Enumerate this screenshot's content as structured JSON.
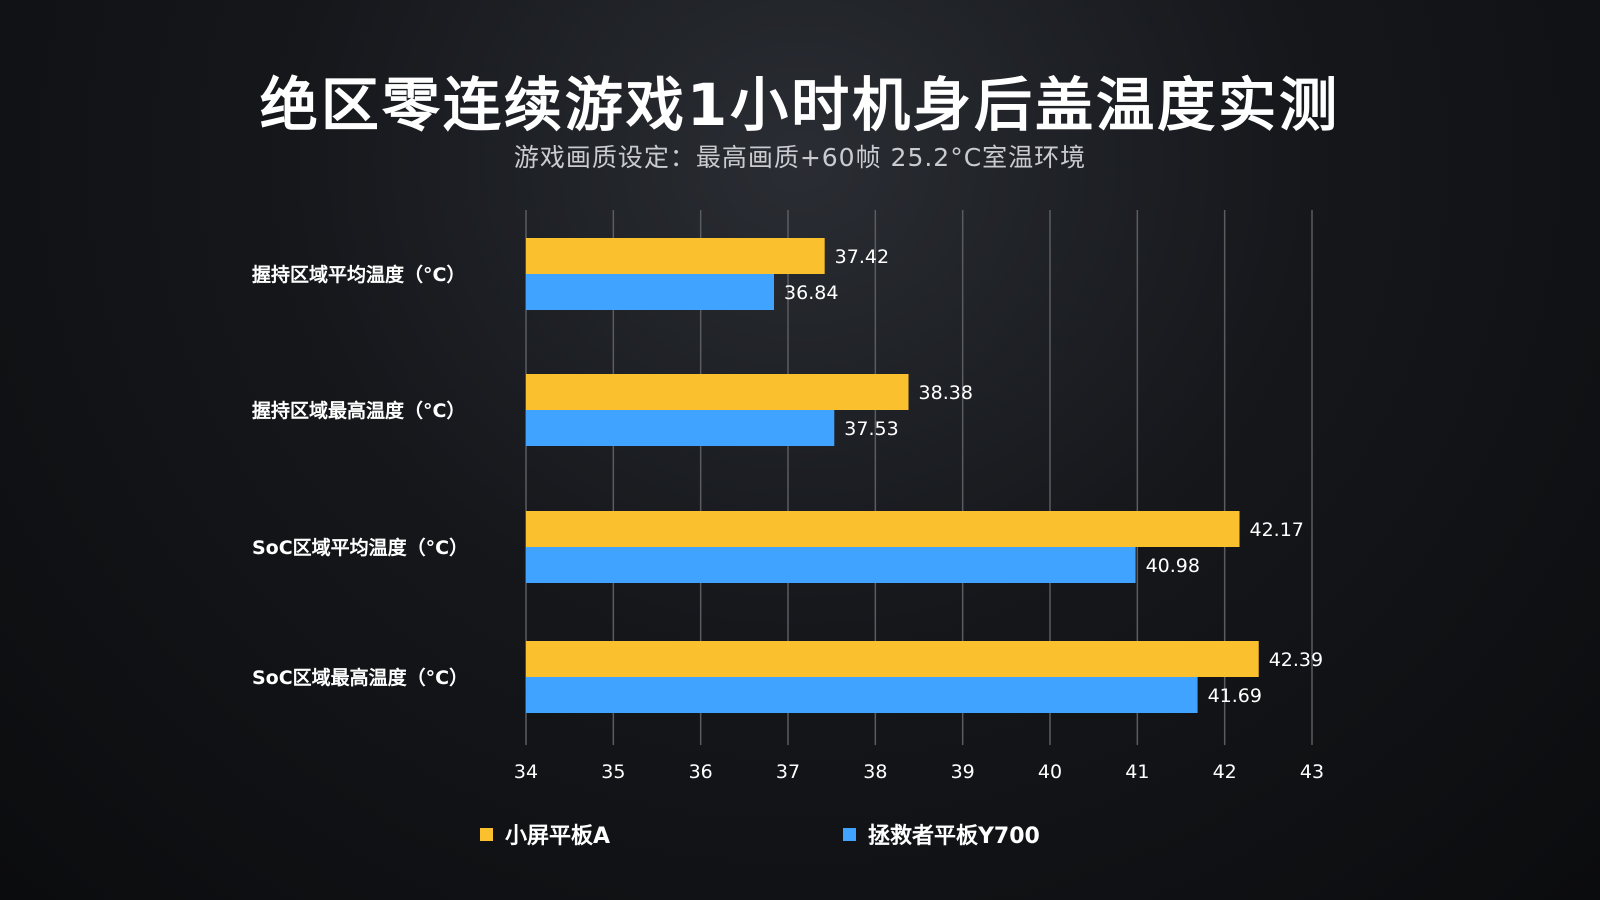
{
  "title": "绝区零连续游戏1小时机身后盖温度实测",
  "subtitle": "游戏画质设定：最高画质+60帧  25.2°C室温环境",
  "colors": {
    "series_a": "#fbc02d",
    "series_b": "#3fa3ff",
    "grid": "#5a5c62"
  },
  "chart_data": {
    "type": "bar",
    "orientation": "horizontal",
    "categories": [
      "握持区域平均温度（°C）",
      "握持区域最高温度（°C）",
      "SoC区域平均温度（°C）",
      "SoC区域最高温度（°C）"
    ],
    "series": [
      {
        "name": "小屏平板A",
        "values": [
          37.42,
          38.38,
          42.17,
          42.39
        ]
      },
      {
        "name": "拯救者平板Y700",
        "values": [
          36.84,
          37.53,
          40.98,
          41.69
        ]
      }
    ],
    "xlim": [
      34,
      43
    ],
    "xticks": [
      "34",
      "35",
      "36",
      "37",
      "38",
      "39",
      "40",
      "41",
      "42",
      "43"
    ],
    "grid": "vertical",
    "legend_position": "bottom"
  }
}
